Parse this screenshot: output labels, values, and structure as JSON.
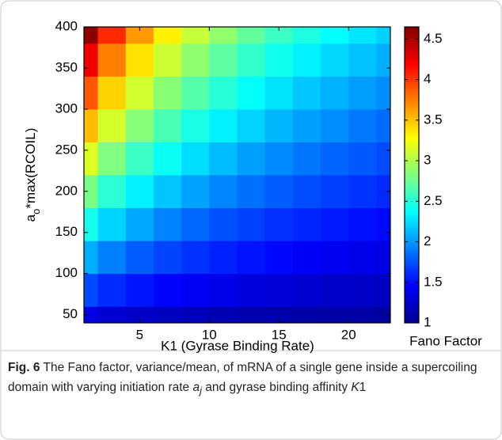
{
  "chart_data": {
    "type": "heatmap",
    "xlabel": "K1 (Gyrase Binding Rate)",
    "ylabel": [
      "a",
      "o",
      "*max(RCOIL)"
    ],
    "x": [
      1,
      3,
      5,
      7,
      9,
      11,
      13,
      15,
      17,
      19,
      21,
      23
    ],
    "y": [
      40,
      80,
      120,
      160,
      200,
      240,
      280,
      320,
      360,
      400
    ],
    "z": [
      [
        1.36,
        1.3,
        1.26,
        1.23,
        1.21,
        1.19,
        1.17,
        1.16,
        1.15,
        1.14,
        1.13,
        1.12
      ],
      [
        1.72,
        1.61,
        1.53,
        1.47,
        1.42,
        1.38,
        1.34,
        1.32,
        1.29,
        1.27,
        1.26,
        1.24
      ],
      [
        2.08,
        1.91,
        1.79,
        1.7,
        1.63,
        1.57,
        1.52,
        1.48,
        1.44,
        1.41,
        1.38,
        1.36
      ],
      [
        2.44,
        2.22,
        2.06,
        1.93,
        1.83,
        1.75,
        1.69,
        1.63,
        1.59,
        1.55,
        1.51,
        1.48
      ],
      [
        2.8,
        2.52,
        2.32,
        2.16,
        2.04,
        1.94,
        1.86,
        1.79,
        1.73,
        1.68,
        1.64,
        1.6
      ],
      [
        3.16,
        2.83,
        2.58,
        2.4,
        2.25,
        2.13,
        2.03,
        1.95,
        1.88,
        1.82,
        1.77,
        1.72
      ],
      [
        3.52,
        3.13,
        2.85,
        2.63,
        2.46,
        2.32,
        2.21,
        2.11,
        2.03,
        1.96,
        1.89,
        1.84
      ],
      [
        3.88,
        3.44,
        3.11,
        2.86,
        2.67,
        2.51,
        2.38,
        2.27,
        2.17,
        2.09,
        2.02,
        1.96
      ],
      [
        4.24,
        3.74,
        3.38,
        3.1,
        2.88,
        2.7,
        2.55,
        2.43,
        2.32,
        2.23,
        2.15,
        2.08
      ],
      [
        4.6,
        4.05,
        3.64,
        3.33,
        3.08,
        2.89,
        2.72,
        2.58,
        2.47,
        2.37,
        2.28,
        2.2
      ]
    ],
    "xlim": [
      1,
      23
    ],
    "ylim": [
      40,
      400
    ],
    "xticks": [
      5,
      10,
      15,
      20
    ],
    "yticks": [
      50,
      100,
      150,
      200,
      250,
      300,
      350,
      400
    ],
    "colormap": "jet",
    "colorbar": {
      "label": "Fano Factor",
      "lim": [
        1,
        4.65
      ],
      "ticks": [
        1,
        1.5,
        2,
        2.5,
        3,
        3.5,
        4,
        4.5
      ]
    }
  },
  "caption": {
    "label": "Fig. 6",
    "parts": [
      " The Fano factor, variance/mean, of mRNA of a single gene inside a supercoiling domain with varying initiation rate ",
      "a",
      "j",
      " and gyrase binding affinity ",
      "K",
      "1"
    ]
  }
}
